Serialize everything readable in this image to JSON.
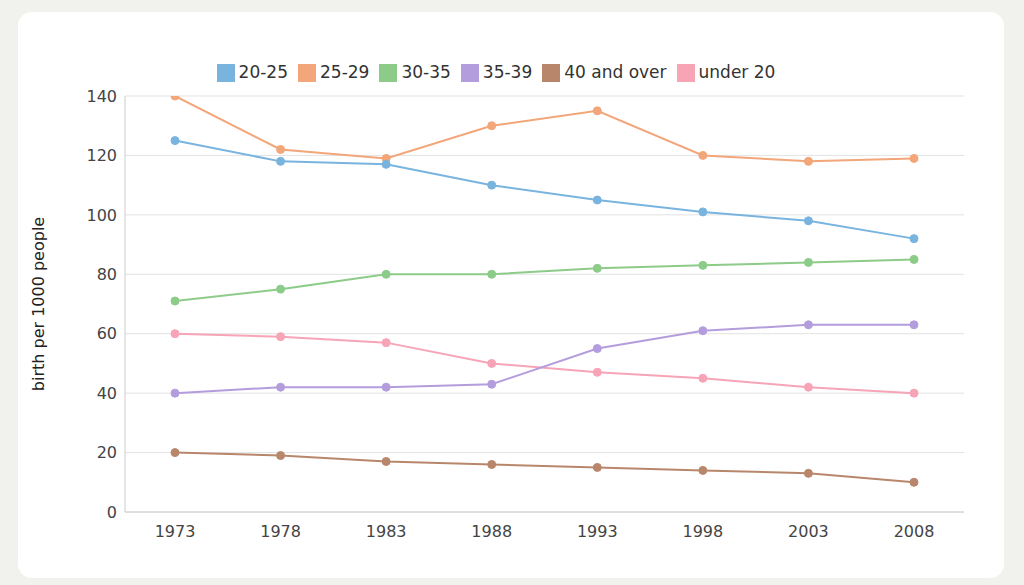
{
  "chart_data": {
    "type": "line",
    "y_label": "birth per 1000 people",
    "categories": [
      "1973",
      "1978",
      "1983",
      "1988",
      "1993",
      "1998",
      "2003",
      "2008"
    ],
    "series": [
      {
        "name": "25-29",
        "color": "#f2a679",
        "values": [
          140,
          122,
          119,
          130,
          135,
          120,
          118,
          119
        ]
      },
      {
        "name": "20-25",
        "color": "#79b4df",
        "values": [
          125,
          118,
          117,
          110,
          105,
          101,
          98,
          92
        ]
      },
      {
        "name": "30-35",
        "color": "#8dcb89",
        "values": [
          71,
          75,
          80,
          80,
          82,
          83,
          84,
          85
        ]
      },
      {
        "name": "under 20",
        "color": "#f6a4b6",
        "values": [
          60,
          59,
          57,
          50,
          47,
          45,
          42,
          40
        ]
      },
      {
        "name": "35-39",
        "color": "#b49ddc",
        "values": [
          40,
          42,
          42,
          43,
          55,
          61,
          63,
          63
        ]
      },
      {
        "name": "40 and over",
        "color": "#b8876b",
        "values": [
          20,
          19,
          17,
          16,
          15,
          14,
          13,
          10
        ]
      }
    ],
    "ylim": [
      0,
      140
    ],
    "yticks": [
      0,
      20,
      40,
      60,
      80,
      100,
      120,
      140
    ],
    "grid": "y",
    "legend": "top",
    "marker": "circle"
  }
}
